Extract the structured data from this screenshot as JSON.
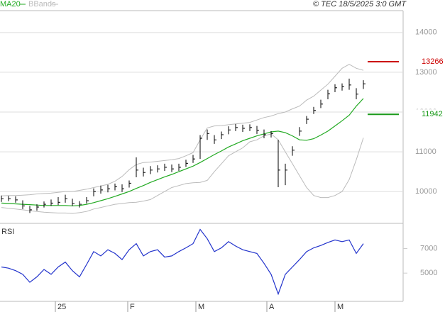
{
  "chart_data": [
    {
      "type": "ohlc",
      "source": "© TEC 18/5/2025 3:0 GMT",
      "bars": {
        "high": [
          9900,
          9890,
          9880,
          9780,
          9640,
          9680,
          9750,
          9800,
          9860,
          9920,
          9820,
          9760,
          9860,
          10080,
          10150,
          10170,
          10200,
          10180,
          10280,
          10860,
          10600,
          10640,
          10660,
          10700,
          10680,
          10700,
          10800,
          10920,
          11420,
          11560,
          11420,
          11510,
          11640,
          11700,
          11680,
          11690,
          11650,
          11560,
          11520,
          11300,
          10700,
          11140,
          11620,
          11900,
          12130,
          12310,
          12560,
          12700,
          12720,
          12840,
          12600,
          12800
        ],
        "low": [
          9740,
          9760,
          9720,
          9560,
          9460,
          9520,
          9600,
          9640,
          9660,
          9720,
          9640,
          9600,
          9700,
          9880,
          9950,
          9980,
          10030,
          9990,
          10100,
          10360,
          10380,
          10440,
          10480,
          10520,
          10490,
          10520,
          10620,
          10720,
          10820,
          11300,
          11200,
          11320,
          11440,
          11520,
          11500,
          11520,
          11450,
          11340,
          11360,
          10110,
          10160,
          10900,
          11400,
          11700,
          11950,
          12100,
          12320,
          12500,
          12540,
          12560,
          12320,
          12580
        ],
        "close": [
          9820,
          9820,
          9790,
          9640,
          9540,
          9610,
          9680,
          9710,
          9730,
          9820,
          9700,
          9680,
          9770,
          10000,
          10040,
          10070,
          10120,
          10070,
          10210,
          10540,
          10480,
          10540,
          10570,
          10610,
          10570,
          10610,
          10710,
          10820,
          11340,
          11460,
          11300,
          11430,
          11550,
          11610,
          11590,
          11610,
          11540,
          11430,
          11460,
          10540,
          10540,
          11040,
          11520,
          11820,
          12040,
          12200,
          12460,
          12610,
          12640,
          12680,
          12450,
          12710
        ],
        "color": "#000000"
      },
      "series": [
        {
          "name": "MA20",
          "color": "#22aa22",
          "values": [
            9710,
            9700,
            9690,
            9680,
            9670,
            9660,
            9650,
            9650,
            9650,
            9650,
            9640,
            9650,
            9680,
            9720,
            9770,
            9820,
            9880,
            9940,
            10000,
            10080,
            10150,
            10230,
            10300,
            10370,
            10430,
            10500,
            10570,
            10640,
            10730,
            10830,
            10930,
            11020,
            11120,
            11200,
            11280,
            11340,
            11400,
            11450,
            11500,
            11520,
            11480,
            11400,
            11300,
            11290,
            11330,
            11420,
            11520,
            11650,
            11780,
            11920,
            12150,
            12340
          ]
        },
        {
          "name": "BBands",
          "color": "#bbbbbb",
          "upper": [
            9890,
            9900,
            9900,
            9910,
            9920,
            9940,
            9950,
            9960,
            9980,
            10000,
            10000,
            10030,
            10060,
            10100,
            10140,
            10180,
            10260,
            10380,
            10550,
            10680,
            10730,
            10740,
            10760,
            10780,
            10800,
            10830,
            10900,
            10980,
            11300,
            11600,
            11650,
            11660,
            11680,
            11700,
            11720,
            11740,
            11800,
            11860,
            11900,
            11960,
            12000,
            12080,
            12150,
            12300,
            12400,
            12550,
            12700,
            12900,
            13100,
            13200,
            13100,
            13050
          ],
          "lower": [
            9600,
            9580,
            9560,
            9540,
            9520,
            9500,
            9480,
            9470,
            9460,
            9460,
            9450,
            9470,
            9500,
            9560,
            9600,
            9640,
            9680,
            9700,
            9720,
            9730,
            9760,
            9800,
            9900,
            10000,
            10100,
            10150,
            10200,
            10220,
            10230,
            10280,
            10500,
            10700,
            10900,
            11000,
            11100,
            11250,
            11300,
            11400,
            11450,
            11300,
            11000,
            10700,
            10400,
            10100,
            9900,
            9850,
            9850,
            9900,
            10000,
            10300,
            10800,
            11350
          ]
        }
      ],
      "levels": [
        {
          "value": 13266,
          "label": "13266",
          "color": "#cc0000"
        },
        {
          "value": 11942,
          "label": "11942",
          "color": "#1a9a1a"
        }
      ],
      "ylim": [
        9200,
        14550
      ],
      "yticks": [
        10000,
        11000,
        12000,
        13000,
        14000
      ],
      "grid": true
    },
    {
      "type": "line",
      "title": "RSI",
      "series": [
        {
          "color": "#2233cc",
          "values": [
            5500,
            5400,
            5200,
            4900,
            4250,
            4700,
            5300,
            4900,
            5500,
            5900,
            5200,
            4700,
            5700,
            6750,
            6400,
            6900,
            6600,
            6100,
            6900,
            7400,
            6400,
            6750,
            6900,
            6300,
            6400,
            6750,
            7060,
            7400,
            8560,
            7800,
            6750,
            7060,
            7560,
            7200,
            6900,
            6750,
            6600,
            5800,
            4900,
            3300,
            4900,
            5500,
            6100,
            6750,
            7060,
            7250,
            7500,
            7700,
            7560,
            7700,
            6600,
            7400
          ]
        }
      ],
      "ylim": [
        2700,
        9050
      ],
      "yticks": [
        5000,
        7000
      ],
      "xlim": [
        -0.2,
        56.6
      ],
      "xticks": [
        {
          "value": 7.6,
          "label": "25"
        },
        {
          "value": 17.8,
          "label": "F"
        },
        {
          "value": 27.4,
          "label": "M"
        },
        {
          "value": 37.4,
          "label": "A"
        },
        {
          "value": 47,
          "label": "M"
        }
      ]
    }
  ]
}
